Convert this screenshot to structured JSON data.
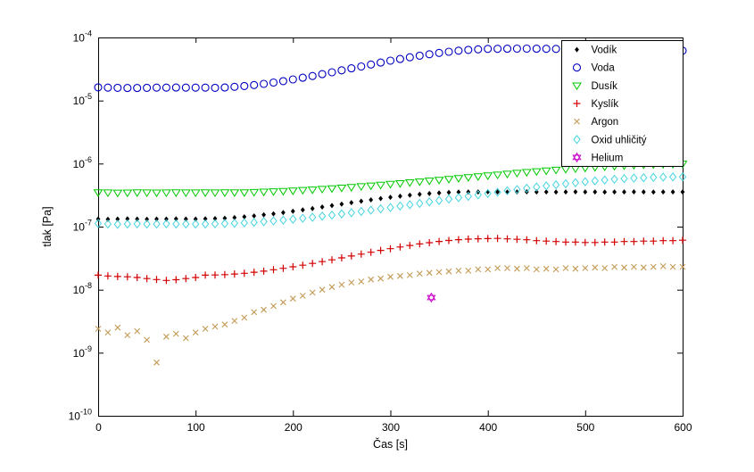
{
  "chart_data": {
    "type": "scatter",
    "title": "",
    "xlabel": "Čas [s]",
    "ylabel": "tlak [Pa]",
    "xlim": [
      0,
      600
    ],
    "ylim": [
      1e-10,
      0.0001
    ],
    "y_scale": "log",
    "x_ticks": [
      0,
      100,
      200,
      300,
      400,
      500,
      600
    ],
    "y_tick_exponents": [
      -10,
      -9,
      -8,
      -7,
      -6,
      -5,
      -4
    ],
    "grid": false,
    "legend_position": "northeast",
    "frame_color": "#000000",
    "background_color": "#ffffff",
    "x": [
      0,
      10,
      20,
      30,
      40,
      50,
      60,
      70,
      80,
      90,
      100,
      110,
      120,
      130,
      140,
      150,
      160,
      170,
      180,
      190,
      200,
      210,
      220,
      230,
      240,
      250,
      260,
      270,
      280,
      290,
      300,
      310,
      320,
      330,
      340,
      350,
      360,
      370,
      380,
      390,
      400,
      410,
      420,
      430,
      440,
      450,
      460,
      470,
      480,
      490,
      500,
      510,
      520,
      530,
      540,
      550,
      560,
      570,
      580,
      590,
      600
    ],
    "series": [
      {
        "name": "Vodík",
        "marker": "diamond-filled",
        "color": "#000000",
        "y": [
          1.32e-07,
          1.31e-07,
          1.32e-07,
          1.33e-07,
          1.32e-07,
          1.31e-07,
          1.32e-07,
          1.32e-07,
          1.33e-07,
          1.32e-07,
          1.32e-07,
          1.33e-07,
          1.34e-07,
          1.36e-07,
          1.39e-07,
          1.43e-07,
          1.48e-07,
          1.54e-07,
          1.6e-07,
          1.67e-07,
          1.75e-07,
          1.84e-07,
          1.93e-07,
          2.05e-07,
          2.16e-07,
          2.28e-07,
          2.4e-07,
          2.53e-07,
          2.66e-07,
          2.79e-07,
          2.92e-07,
          3.04e-07,
          3.16e-07,
          3.26e-07,
          3.35e-07,
          3.43e-07,
          3.5e-07,
          3.53e-07,
          3.55e-07,
          3.55e-07,
          3.56e-07,
          3.55e-07,
          3.54e-07,
          3.55e-07,
          3.56e-07,
          3.55e-07,
          3.55e-07,
          3.54e-07,
          3.55e-07,
          3.56e-07,
          3.55e-07,
          3.55e-07,
          3.54e-07,
          3.55e-07,
          3.55e-07,
          3.56e-07,
          3.55e-07,
          3.54e-07,
          3.55e-07,
          3.55e-07,
          3.55e-07
        ]
      },
      {
        "name": "Voda",
        "marker": "circle",
        "color": "#0000c0",
        "y": [
          1.62e-05,
          1.6e-05,
          1.59e-05,
          1.58e-05,
          1.58e-05,
          1.59e-05,
          1.6e-05,
          1.6e-05,
          1.61e-05,
          1.6e-05,
          1.6e-05,
          1.6e-05,
          1.59e-05,
          1.61e-05,
          1.65e-05,
          1.7e-05,
          1.76e-05,
          1.84e-05,
          1.93e-05,
          2.03e-05,
          2.16e-05,
          2.3e-05,
          2.45e-05,
          2.62e-05,
          2.81e-05,
          3.01e-05,
          3.24e-05,
          3.47e-05,
          3.73e-05,
          4e-05,
          4.28e-05,
          4.56e-05,
          4.85e-05,
          5.14e-05,
          5.42e-05,
          5.7e-05,
          5.94e-05,
          6.17e-05,
          6.35e-05,
          6.49e-05,
          6.58e-05,
          6.62e-05,
          6.64e-05,
          6.65e-05,
          6.65e-05,
          6.64e-05,
          6.62e-05,
          6.6e-05,
          6.57e-05,
          6.54e-05,
          6.5e-05,
          6.46e-05,
          6.42e-05,
          6.38e-05,
          6.34e-05,
          6.3e-05,
          6.27e-05,
          6.24e-05,
          6.21e-05,
          6.19e-05,
          6.17e-05
        ]
      },
      {
        "name": "Dusík",
        "marker": "triangle-down",
        "color": "#00c800",
        "y": [
          3.5e-07,
          3.47e-07,
          3.45e-07,
          3.46e-07,
          3.48e-07,
          3.47e-07,
          3.46e-07,
          3.47e-07,
          3.48e-07,
          3.47e-07,
          3.47e-07,
          3.48e-07,
          3.47e-07,
          3.48e-07,
          3.49e-07,
          3.5e-07,
          3.53e-07,
          3.57e-07,
          3.62e-07,
          3.67e-07,
          3.73e-07,
          3.8e-07,
          3.87e-07,
          3.95e-07,
          4.04e-07,
          4.14e-07,
          4.24e-07,
          4.36e-07,
          4.48e-07,
          4.6e-07,
          4.74e-07,
          4.88e-07,
          5.03e-07,
          5.19e-07,
          5.36e-07,
          5.52e-07,
          5.7e-07,
          5.89e-07,
          6.08e-07,
          6.28e-07,
          6.47e-07,
          6.67e-07,
          6.89e-07,
          7.1e-07,
          7.31e-07,
          7.53e-07,
          7.74e-07,
          7.96e-07,
          8.17e-07,
          8.37e-07,
          8.57e-07,
          8.76e-07,
          8.96e-07,
          9.14e-07,
          9.31e-07,
          9.46e-07,
          9.62e-07,
          9.71e-07,
          9.8e-07,
          9.89e-07,
          9.95e-07
        ]
      },
      {
        "name": "Kyslík",
        "marker": "plus",
        "color": "#d40000",
        "y": [
          1.7e-08,
          1.65e-08,
          1.62e-08,
          1.6e-08,
          1.56e-08,
          1.5e-08,
          1.45e-08,
          1.4e-08,
          1.44e-08,
          1.5e-08,
          1.56e-08,
          1.7e-08,
          1.71e-08,
          1.73e-08,
          1.77e-08,
          1.82e-08,
          1.89e-08,
          1.97e-08,
          2.07e-08,
          2.18e-08,
          2.31e-08,
          2.45e-08,
          2.61e-08,
          2.79e-08,
          2.98e-08,
          3.2e-08,
          3.42e-08,
          3.67e-08,
          3.93e-08,
          4.2e-08,
          4.47e-08,
          4.75e-08,
          5.03e-08,
          5.31e-08,
          5.57e-08,
          5.82e-08,
          6.04e-08,
          6.21e-08,
          6.34e-08,
          6.43e-08,
          6.46e-08,
          6.5e-08,
          6.4e-08,
          6.3e-08,
          6.2e-08,
          6e-08,
          5.9e-08,
          5.8e-08,
          5.7e-08,
          5.7e-08,
          5.6e-08,
          5.6e-08,
          5.7e-08,
          5.7e-08,
          5.8e-08,
          5.8e-08,
          5.9e-08,
          5.9e-08,
          6e-08,
          6e-08,
          6.1e-08
        ]
      },
      {
        "name": "Argon",
        "marker": "x",
        "color": "#c49a54",
        "y": [
          2.4e-09,
          2.1e-09,
          2.5e-09,
          1.9e-09,
          2.2e-09,
          1.6e-09,
          7e-10,
          1.8e-09,
          2e-09,
          1.7e-09,
          2.1e-09,
          2.4e-09,
          2.6e-09,
          2.8e-09,
          3.2e-09,
          3.6e-09,
          4.4e-09,
          4.8e-09,
          5.5e-09,
          6.3e-09,
          7.2e-09,
          8e-09,
          9e-09,
          1e-08,
          1.1e-08,
          1.2e-08,
          1.3e-08,
          1.35e-08,
          1.45e-08,
          1.5e-08,
          1.6e-08,
          1.65e-08,
          1.7e-08,
          1.8e-08,
          1.85e-08,
          1.9e-08,
          1.95e-08,
          2e-08,
          2e-08,
          2.1e-08,
          2.1e-08,
          2.2e-08,
          2.2e-08,
          2.15e-08,
          2.2e-08,
          2.1e-08,
          2.15e-08,
          2.1e-08,
          2.2e-08,
          2.15e-08,
          2.2e-08,
          2.25e-08,
          2.2e-08,
          2.3e-08,
          2.25e-08,
          2.3e-08,
          2.25e-08,
          2.3e-08,
          2.35e-08,
          2.3e-08,
          2.3e-08
        ]
      },
      {
        "name": "Oxid uhličitý",
        "marker": "diamond",
        "color": "#45d4e0",
        "y": [
          1.12e-07,
          1.1e-07,
          1.09e-07,
          1.1e-07,
          1.11e-07,
          1.1e-07,
          1.1e-07,
          1.11e-07,
          1.1e-07,
          1.1e-07,
          1.1e-07,
          1.1e-07,
          1.11e-07,
          1.12e-07,
          1.13e-07,
          1.15e-07,
          1.17e-07,
          1.2e-07,
          1.23e-07,
          1.27e-07,
          1.31e-07,
          1.36e-07,
          1.41e-07,
          1.47e-07,
          1.52e-07,
          1.59e-07,
          1.66e-07,
          1.74e-07,
          1.82e-07,
          1.92e-07,
          2.01e-07,
          2.12e-07,
          2.23e-07,
          2.34e-07,
          2.47e-07,
          2.6e-07,
          2.74e-07,
          2.88e-07,
          3.03e-07,
          3.19e-07,
          3.36e-07,
          3.52e-07,
          3.71e-07,
          3.88e-07,
          4.06e-07,
          4.25e-07,
          4.44e-07,
          4.61e-07,
          4.79e-07,
          4.97e-07,
          5.15e-07,
          5.32e-07,
          5.48e-07,
          5.64e-07,
          5.77e-07,
          5.88e-07,
          5.97e-07,
          6.05e-07,
          6.11e-07,
          6.15e-07,
          6.17e-07
        ]
      },
      {
        "name": "Helium",
        "marker": "hexagram",
        "color": "#c800c8",
        "x": [
          342
        ],
        "y": [
          7.5e-09
        ]
      }
    ],
    "legend": [
      "Vodík",
      "Voda",
      "Dusík",
      "Kyslík",
      "Argon",
      "Oxid uhličitý",
      "Helium"
    ]
  }
}
